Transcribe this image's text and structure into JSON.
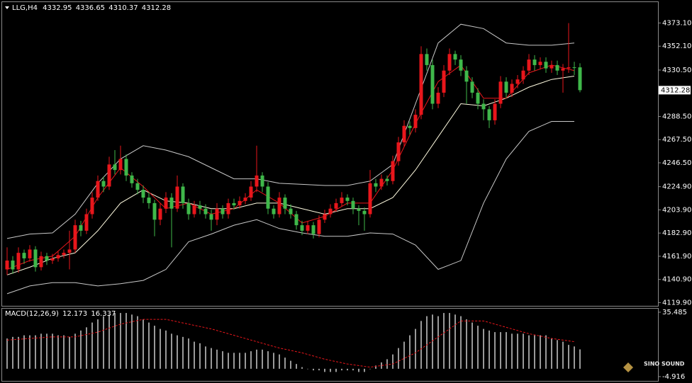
{
  "chart_data": {
    "type": "candlestick",
    "symbol": "LLG,H4",
    "header_values": [
      4332.95,
      4336.65,
      4310.37,
      4312.28
    ],
    "last_price": 4312.28,
    "up_color": "#e8161b",
    "down_color": "#3fb84a",
    "ylim": [
      4117,
      4392
    ],
    "yticks": [
      {
        "value": 4373.1,
        "label": "4373.10"
      },
      {
        "value": 4352.1,
        "label": "4352.10"
      },
      {
        "value": 4330.5,
        "label": "4330.50"
      },
      {
        "value": 4288.5,
        "label": "4288.50"
      },
      {
        "value": 4267.5,
        "label": "4267.50"
      },
      {
        "value": 4246.5,
        "label": "4246.50"
      },
      {
        "value": 4224.9,
        "label": "4224.90"
      },
      {
        "value": 4203.9,
        "label": "4203.90"
      },
      {
        "value": 4182.9,
        "label": "4182.90"
      },
      {
        "value": 4161.9,
        "label": "4161.90"
      },
      {
        "value": 4140.9,
        "label": "4140.90"
      },
      {
        "value": 4119.9,
        "label": "4119.90"
      }
    ],
    "ohlc": [
      [
        4150,
        4170,
        4145,
        4158
      ],
      [
        4158,
        4162,
        4146,
        4150
      ],
      [
        4150,
        4170,
        4147,
        4165
      ],
      [
        4165,
        4168,
        4155,
        4160
      ],
      [
        4160,
        4172,
        4157,
        4168
      ],
      [
        4168,
        4171,
        4148,
        4152
      ],
      [
        4152,
        4166,
        4149,
        4162
      ],
      [
        4162,
        4165,
        4154,
        4158
      ],
      [
        4158,
        4164,
        4155,
        4160
      ],
      [
        4160,
        4166,
        4157,
        4163
      ],
      [
        4163,
        4168,
        4160,
        4165
      ],
      [
        4165,
        4185,
        4150,
        4168
      ],
      [
        4168,
        4195,
        4165,
        4190
      ],
      [
        4190,
        4194,
        4180,
        4185
      ],
      [
        4185,
        4205,
        4182,
        4200
      ],
      [
        4200,
        4220,
        4196,
        4215
      ],
      [
        4215,
        4235,
        4212,
        4230
      ],
      [
        4230,
        4234,
        4220,
        4225
      ],
      [
        4225,
        4252,
        4222,
        4245
      ],
      [
        4245,
        4258,
        4236,
        4240
      ],
      [
        4240,
        4262,
        4236,
        4250
      ],
      [
        4250,
        4254,
        4230,
        4235
      ],
      [
        4235,
        4238,
        4224,
        4228
      ],
      [
        4228,
        4232,
        4218,
        4222
      ],
      [
        4222,
        4226,
        4210,
        4215
      ],
      [
        4215,
        4220,
        4205,
        4210
      ],
      [
        4210,
        4213,
        4180,
        4195
      ],
      [
        4195,
        4210,
        4190,
        4205
      ],
      [
        4205,
        4220,
        4201,
        4215
      ],
      [
        4215,
        4219,
        4170,
        4205
      ],
      [
        4205,
        4235,
        4202,
        4225
      ],
      [
        4225,
        4228,
        4205,
        4210
      ],
      [
        4210,
        4214,
        4195,
        4200
      ],
      [
        4200,
        4212,
        4197,
        4208
      ],
      [
        4208,
        4212,
        4200,
        4205
      ],
      [
        4205,
        4209,
        4196,
        4200
      ],
      [
        4200,
        4204,
        4185,
        4195
      ],
      [
        4195,
        4210,
        4190,
        4205
      ],
      [
        4205,
        4208,
        4196,
        4200
      ],
      [
        4200,
        4214,
        4196,
        4210
      ],
      [
        4210,
        4214,
        4204,
        4208
      ],
      [
        4208,
        4216,
        4205,
        4212
      ],
      [
        4212,
        4219,
        4209,
        4215
      ],
      [
        4215,
        4230,
        4212,
        4225
      ],
      [
        4225,
        4262,
        4220,
        4235
      ],
      [
        4235,
        4238,
        4220,
        4225
      ],
      [
        4225,
        4229,
        4200,
        4205
      ],
      [
        4205,
        4208,
        4196,
        4200
      ],
      [
        4200,
        4220,
        4197,
        4215
      ],
      [
        4215,
        4218,
        4200,
        4205
      ],
      [
        4205,
        4209,
        4196,
        4200
      ],
      [
        4200,
        4203,
        4186,
        4190
      ],
      [
        4190,
        4194,
        4181,
        4185
      ],
      [
        4185,
        4194,
        4182,
        4190
      ],
      [
        4190,
        4193,
        4178,
        4182
      ],
      [
        4182,
        4199,
        4179,
        4195
      ],
      [
        4195,
        4204,
        4192,
        4200
      ],
      [
        4200,
        4209,
        4197,
        4205
      ],
      [
        4205,
        4214,
        4202,
        4210
      ],
      [
        4210,
        4220,
        4207,
        4215
      ],
      [
        4215,
        4218,
        4208,
        4212
      ],
      [
        4212,
        4215,
        4200,
        4205
      ],
      [
        4205,
        4208,
        4190,
        4203
      ],
      [
        4203,
        4206,
        4185,
        4200
      ],
      [
        4200,
        4240,
        4197,
        4228
      ],
      [
        4228,
        4232,
        4220,
        4225
      ],
      [
        4225,
        4236,
        4222,
        4232
      ],
      [
        4232,
        4235,
        4226,
        4230
      ],
      [
        4230,
        4253,
        4227,
        4248
      ],
      [
        4248,
        4270,
        4244,
        4265
      ],
      [
        4265,
        4285,
        4261,
        4280
      ],
      [
        4280,
        4284,
        4272,
        4278
      ],
      [
        4278,
        4295,
        4274,
        4290
      ],
      [
        4290,
        4352,
        4286,
        4345
      ],
      [
        4345,
        4350,
        4330,
        4335
      ],
      [
        4335,
        4340,
        4295,
        4300
      ],
      [
        4300,
        4315,
        4296,
        4310
      ],
      [
        4310,
        4335,
        4306,
        4330
      ],
      [
        4330,
        4350,
        4326,
        4345
      ],
      [
        4345,
        4348,
        4335,
        4340
      ],
      [
        4340,
        4344,
        4325,
        4330
      ],
      [
        4330,
        4334,
        4300,
        4320
      ],
      [
        4320,
        4324,
        4305,
        4310
      ],
      [
        4310,
        4314,
        4295,
        4300
      ],
      [
        4300,
        4304,
        4285,
        4295
      ],
      [
        4295,
        4298,
        4278,
        4285
      ],
      [
        4285,
        4304,
        4281,
        4300
      ],
      [
        4300,
        4325,
        4296,
        4320
      ],
      [
        4320,
        4324,
        4305,
        4310
      ],
      [
        4310,
        4322,
        4306,
        4318
      ],
      [
        4318,
        4326,
        4314,
        4322
      ],
      [
        4322,
        4334,
        4318,
        4330
      ],
      [
        4330,
        4345,
        4326,
        4340
      ],
      [
        4340,
        4344,
        4330,
        4335
      ],
      [
        4335,
        4342,
        4331,
        4338
      ],
      [
        4338,
        4342,
        4328,
        4332
      ],
      [
        4332,
        4339,
        4328,
        4335
      ],
      [
        4335,
        4339,
        4326,
        4330
      ],
      [
        4330,
        4336,
        4310,
        4332
      ],
      [
        4332,
        4373,
        4328,
        4333
      ],
      [
        4333,
        4338,
        4326,
        4332.95
      ],
      [
        4332.95,
        4336.65,
        4310.37,
        4312.28
      ]
    ],
    "line_x": [
      0,
      4,
      8,
      12,
      16,
      20,
      24,
      28,
      32,
      36,
      40,
      44,
      48,
      52,
      56,
      60,
      64,
      68,
      72,
      76,
      80,
      84,
      88,
      92,
      96,
      100
    ],
    "lines": [
      {
        "color": "#c8c8c8",
        "values": [
          4178,
          4182,
          4183,
          4200,
          4228,
          4250,
          4262,
          4258,
          4252,
          4242,
          4232,
          4232,
          4228,
          4227,
          4226,
          4226,
          4230,
          4245,
          4300,
          4355,
          4372,
          4368,
          4355,
          4353,
          4353,
          4355
        ]
      },
      {
        "color": "#c8c8c8",
        "values": [
          4128,
          4135,
          4138,
          4138,
          4135,
          4137,
          4140,
          4150,
          4175,
          4182,
          4190,
          4195,
          4187,
          4183,
          4180,
          4180,
          4183,
          4182,
          4172,
          4150,
          4158,
          4210,
          4250,
          4275,
          4284,
          4284
        ]
      },
      {
        "color": "#fffbe0",
        "values": [
          4145,
          4152,
          4160,
          4165,
          4185,
          4210,
          4222,
          4212,
          4210,
          4205,
          4205,
          4210,
          4210,
          4205,
          4200,
          4205,
          4205,
          4215,
          4240,
          4270,
          4300,
          4298,
          4305,
          4315,
          4322,
          4325
        ]
      },
      {
        "color": "#e8161b",
        "values": [
          4150,
          4158,
          4162,
          4180,
          4215,
          4242,
          4225,
          4205,
          4210,
          4200,
          4205,
          4222,
          4210,
          4192,
          4198,
          4210,
          4210,
          4240,
          4282,
          4320,
          4335,
          4305,
          4305,
          4328,
          4335,
          4330
        ]
      }
    ],
    "macd": {
      "label": "MACD(12,26,9)",
      "header_values": [
        12.173,
        16.337
      ],
      "ylim": [
        -7.6,
        37.7
      ],
      "yticks": [
        35.485,
        -4.916
      ],
      "hist_color": "#ffffff",
      "signal_color": "#e8161b",
      "hist": [
        19,
        20,
        20,
        21,
        21,
        21,
        22,
        22,
        22,
        21,
        21,
        20,
        22,
        24,
        26,
        29,
        31,
        33,
        34,
        35,
        35,
        35,
        34,
        33,
        31,
        29,
        27,
        25,
        24,
        22,
        21,
        20,
        19,
        17,
        16,
        14,
        13,
        12,
        11,
        10,
        10,
        10,
        10,
        11,
        12,
        12,
        11,
        10,
        9,
        7,
        5,
        3,
        1,
        0,
        -1,
        -1,
        -2,
        -2,
        -2,
        -1,
        -1,
        -1,
        -2,
        -2,
        0,
        2,
        4,
        6,
        9,
        13,
        17,
        21,
        25,
        30,
        33,
        34,
        33,
        35,
        35,
        34,
        33,
        31,
        29,
        27,
        25,
        24,
        23,
        23,
        23,
        22,
        22,
        22,
        21,
        21,
        21,
        21,
        19,
        18,
        17,
        15,
        14,
        12.173
      ],
      "signal": [
        18,
        19,
        20,
        20,
        23,
        28,
        31,
        31,
        28,
        25,
        21,
        17,
        13,
        10,
        6,
        3,
        1,
        3,
        10,
        20,
        30,
        30,
        26,
        22,
        19,
        17
      ]
    },
    "watermark": "SINO SOUND"
  }
}
